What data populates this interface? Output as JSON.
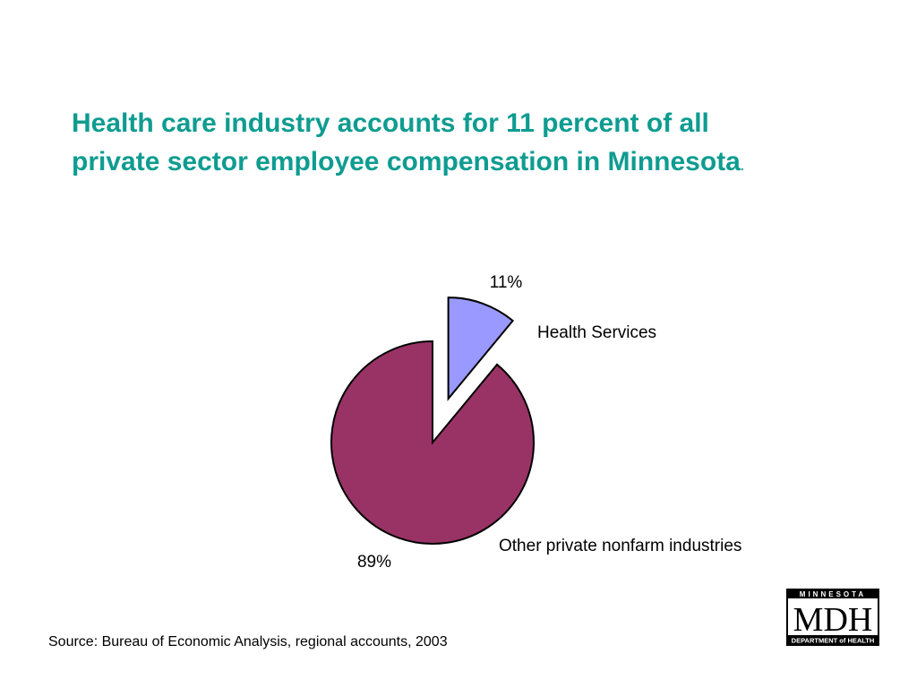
{
  "title": {
    "line1": "Health care industry accounts for 11 percent of all",
    "line2": "private sector employee compensation in Minnesota",
    "trailing": "."
  },
  "chart_data": {
    "type": "pie",
    "categories": [
      "Health Services",
      "Other private nonfarm industries"
    ],
    "values": [
      11,
      89
    ],
    "value_labels": [
      "11%",
      "89%"
    ],
    "colors": [
      "#9999ff",
      "#993366"
    ],
    "exploded": [
      true,
      false
    ]
  },
  "source": "Source: Bureau of Economic Analysis, regional accounts, 2003",
  "logo": {
    "top_text": "MINNESOTA",
    "main_text": "MDH",
    "bottom_text": "DEPARTMENT of HEALTH"
  }
}
